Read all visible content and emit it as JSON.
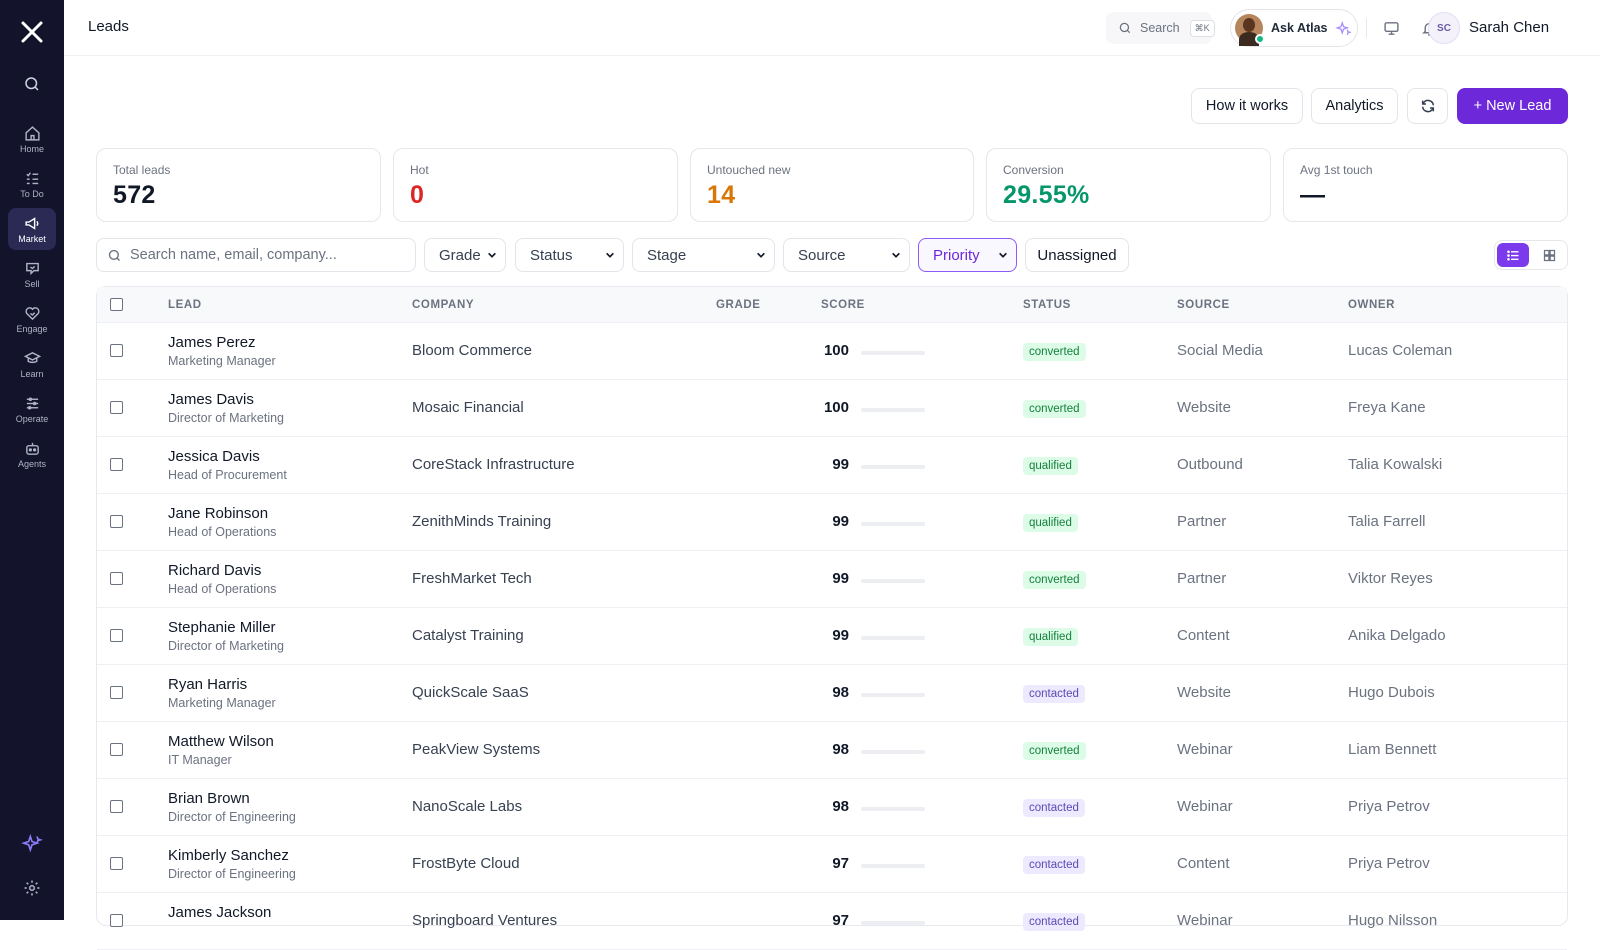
{
  "sidebar": {
    "items": [
      {
        "label": "Home",
        "icon": "home-icon"
      },
      {
        "label": "To Do",
        "icon": "todo-icon"
      },
      {
        "label": "Market",
        "icon": "megaphone-icon",
        "active": true
      },
      {
        "label": "Sell",
        "icon": "sell-icon"
      },
      {
        "label": "Engage",
        "icon": "heart-handshake-icon"
      },
      {
        "label": "Learn",
        "icon": "graduation-cap-icon"
      },
      {
        "label": "Operate",
        "icon": "sliders-icon"
      },
      {
        "label": "Agents",
        "icon": "robot-icon"
      }
    ]
  },
  "header": {
    "title": "Leads",
    "search_label": "Search",
    "search_shortcut": "⌘K",
    "ask_atlas": "Ask Atlas",
    "user_initials": "SC",
    "user_name": "Sarah Chen"
  },
  "actions": {
    "how_it_works": "How it works",
    "analytics": "Analytics",
    "new_lead": "+ New Lead"
  },
  "kpis": [
    {
      "label": "Total leads",
      "value": "572",
      "color": "#111827"
    },
    {
      "label": "Hot",
      "value": "0",
      "color": "#dc2626"
    },
    {
      "label": "Untouched new",
      "value": "14",
      "color": "#d97706"
    },
    {
      "label": "Conversion",
      "value": "29.55%",
      "color": "#059669"
    },
    {
      "label": "Avg 1st touch",
      "value": "—",
      "color": "#111827"
    }
  ],
  "filters": {
    "search_placeholder": "Search name, email, company...",
    "grade": "Grade",
    "status": "Status",
    "stage": "Stage",
    "source": "Source",
    "priority": "Priority",
    "unassigned": "Unassigned"
  },
  "table": {
    "columns": [
      "LEAD",
      "COMPANY",
      "GRADE",
      "SCORE",
      "STATUS",
      "SOURCE",
      "OWNER"
    ],
    "rows": [
      {
        "name": "James Perez",
        "title": "Marketing Manager",
        "company": "Bloom Commerce",
        "score": "100",
        "status": "converted",
        "source": "Social Media",
        "owner": "Lucas Coleman"
      },
      {
        "name": "James Davis",
        "title": "Director of Marketing",
        "company": "Mosaic Financial",
        "score": "100",
        "status": "converted",
        "source": "Website",
        "owner": "Freya Kane"
      },
      {
        "name": "Jessica Davis",
        "title": "Head of Procurement",
        "company": "CoreStack Infrastructure",
        "score": "99",
        "status": "qualified",
        "source": "Outbound",
        "owner": "Talia Kowalski"
      },
      {
        "name": "Jane Robinson",
        "title": "Head of Operations",
        "company": "ZenithMinds Training",
        "score": "99",
        "status": "qualified",
        "source": "Partner",
        "owner": "Talia Farrell"
      },
      {
        "name": "Richard Davis",
        "title": "Head of Operations",
        "company": "FreshMarket Tech",
        "score": "99",
        "status": "converted",
        "source": "Partner",
        "owner": "Viktor Reyes"
      },
      {
        "name": "Stephanie Miller",
        "title": "Director of Marketing",
        "company": "Catalyst Training",
        "score": "99",
        "status": "qualified",
        "source": "Content",
        "owner": "Anika Delgado"
      },
      {
        "name": "Ryan Harris",
        "title": "Marketing Manager",
        "company": "QuickScale SaaS",
        "score": "98",
        "status": "contacted",
        "source": "Website",
        "owner": "Hugo Dubois"
      },
      {
        "name": "Matthew Wilson",
        "title": "IT Manager",
        "company": "PeakView Systems",
        "score": "98",
        "status": "converted",
        "source": "Webinar",
        "owner": "Liam Bennett"
      },
      {
        "name": "Brian Brown",
        "title": "Director of Engineering",
        "company": "NanoScale Labs",
        "score": "98",
        "status": "contacted",
        "source": "Webinar",
        "owner": "Priya Petrov"
      },
      {
        "name": "Kimberly Sanchez",
        "title": "Director of Engineering",
        "company": "FrostByte Cloud",
        "score": "97",
        "status": "contacted",
        "source": "Content",
        "owner": "Priya Petrov"
      },
      {
        "name": "James Jackson",
        "title": "",
        "company": "Springboard Ventures",
        "score": "97",
        "status": "contacted",
        "source": "Webinar",
        "owner": "Hugo Nilsson"
      }
    ]
  }
}
